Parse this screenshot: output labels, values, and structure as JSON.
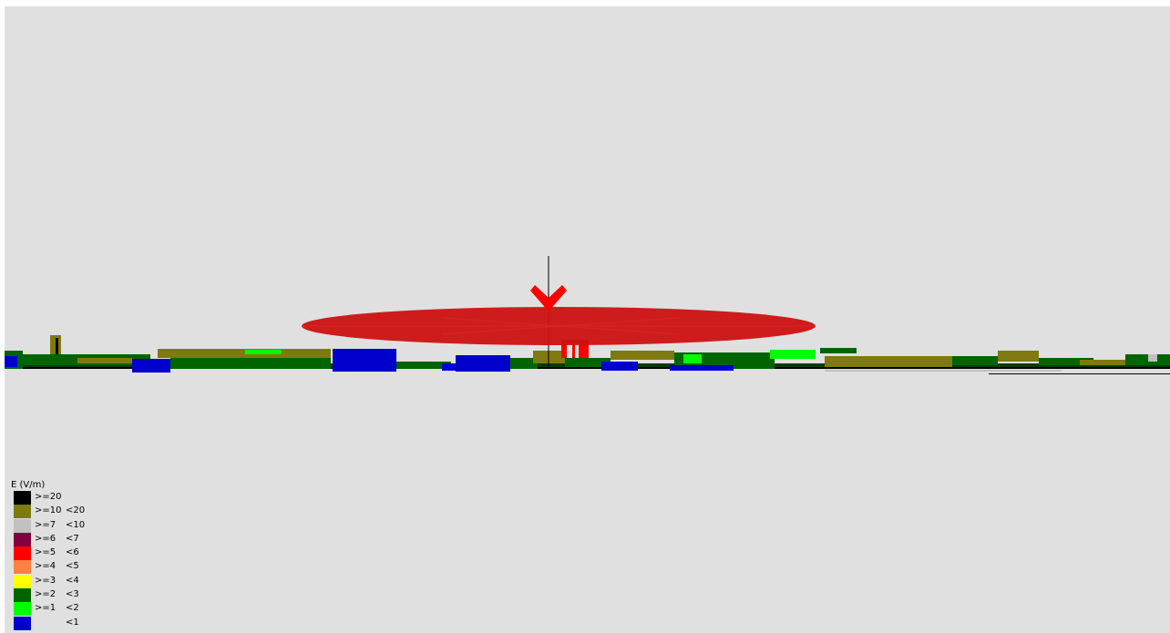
{
  "legend": {
    "title": "E (V/m)",
    "items": [
      {
        "color": "#000000",
        "lower": ">=20",
        "upper": ""
      },
      {
        "color": "#7e7a10",
        "lower": ">=10",
        "upper": "<20"
      },
      {
        "color": "#c0c0c0",
        "lower": ">=7",
        "upper": "<10"
      },
      {
        "color": "#800040",
        "lower": ">=6",
        "upper": "<7"
      },
      {
        "color": "#ff0000",
        "lower": ">=5",
        "upper": "<6"
      },
      {
        "color": "#ff8040",
        "lower": ">=4",
        "upper": "<5"
      },
      {
        "color": "#ffff00",
        "lower": ">=3",
        "upper": "<4"
      },
      {
        "color": "#006400",
        "lower": ">=2",
        "upper": "<3"
      },
      {
        "color": "#00ff00",
        "lower": ">=1",
        "upper": "<2"
      },
      {
        "color": "#0000cc",
        "lower": "",
        "upper": "<1"
      }
    ]
  },
  "scene": {
    "background": "#e0e0e0",
    "lobe_color": "#cc1111",
    "mast_color": "#000000"
  }
}
